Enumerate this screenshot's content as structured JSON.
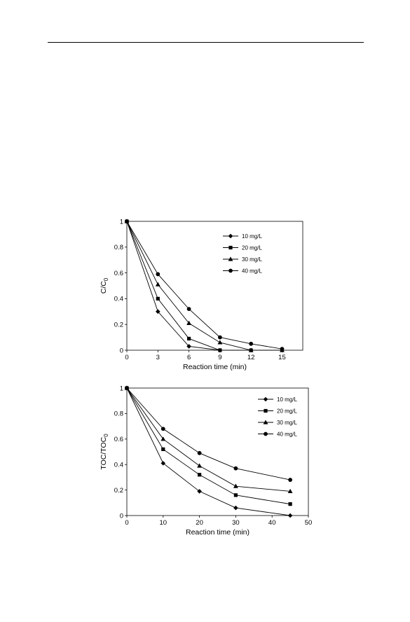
{
  "chart_data": [
    {
      "type": "line",
      "xlabel": "Reaction time (min)",
      "ylabel_main": "C/C",
      "ylabel_sub": "0",
      "x": [
        0,
        3,
        6,
        9,
        12,
        15
      ],
      "xlim": [
        0,
        17
      ],
      "ylim": [
        0,
        1
      ],
      "xticks": [
        0,
        3,
        6,
        9,
        12,
        15
      ],
      "yticks": [
        0,
        0.2,
        0.4,
        0.6,
        0.8,
        1
      ],
      "grid": false,
      "legend_position": "top-right",
      "series": [
        {
          "name": "10 mg/L",
          "marker": "diamond",
          "values": [
            1,
            0.3,
            0.03,
            0.0,
            null,
            null
          ]
        },
        {
          "name": "20 mg/L",
          "marker": "square",
          "values": [
            1,
            0.4,
            0.09,
            0.0,
            0.0,
            null
          ]
        },
        {
          "name": "30 mg/L",
          "marker": "triangle",
          "values": [
            1,
            0.51,
            0.21,
            0.06,
            0.0,
            0.0
          ]
        },
        {
          "name": "40 mg/L",
          "marker": "circle",
          "values": [
            1,
            0.59,
            0.32,
            0.1,
            0.05,
            0.01
          ]
        }
      ]
    },
    {
      "type": "line",
      "xlabel": "Reaction time (min)",
      "ylabel_main": "TOC/TOC",
      "ylabel_sub": "0",
      "x": [
        0,
        10,
        20,
        30,
        45
      ],
      "xlim": [
        0,
        50
      ],
      "ylim": [
        0,
        1
      ],
      "xticks": [
        0,
        10,
        20,
        30,
        40,
        50
      ],
      "yticks": [
        0,
        0.2,
        0.4,
        0.6,
        0.8,
        1
      ],
      "grid": false,
      "legend_position": "top-right",
      "series": [
        {
          "name": "10 mg/L",
          "marker": "diamond",
          "values": [
            1,
            0.41,
            0.19,
            0.06,
            0.0
          ]
        },
        {
          "name": "20 mg/L",
          "marker": "square",
          "values": [
            1,
            0.52,
            0.32,
            0.16,
            0.09
          ]
        },
        {
          "name": "30 mg/L",
          "marker": "triangle",
          "values": [
            1,
            0.6,
            0.39,
            0.23,
            0.19
          ]
        },
        {
          "name": "40 mg/L",
          "marker": "circle",
          "values": [
            1,
            0.68,
            0.49,
            0.37,
            0.28
          ]
        }
      ]
    }
  ]
}
